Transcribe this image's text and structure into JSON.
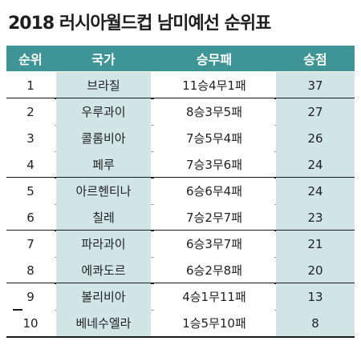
{
  "title": "2018 러시아월드컵 남미예선 순위표",
  "headers": {
    "rank": "순위",
    "team": "국가",
    "record": "승무패",
    "points": "승점"
  },
  "rows": [
    {
      "rank": "1",
      "team": "브라질",
      "record": "11승4무1패",
      "points": "37"
    },
    {
      "rank": "2",
      "team": "우루과이",
      "record": "8승3무5패",
      "points": "27"
    },
    {
      "rank": "3",
      "team": "콜롬비아",
      "record": "7승5무4패",
      "points": "26"
    },
    {
      "rank": "4",
      "team": "페루",
      "record": "7승3무6패",
      "points": "24"
    },
    {
      "rank": "5",
      "team": "아르헨티나",
      "record": "6승6무4패",
      "points": "24"
    },
    {
      "rank": "6",
      "team": "칠레",
      "record": "7승2무7패",
      "points": "23"
    },
    {
      "rank": "7",
      "team": "파라과이",
      "record": "6승3무7패",
      "points": "21"
    },
    {
      "rank": "8",
      "team": "에콰도르",
      "record": "6승2무8패",
      "points": "20"
    },
    {
      "rank": "9",
      "team": "볼리비아",
      "record": "4승1무11패",
      "points": "13"
    },
    {
      "rank": "10",
      "team": "베네수엘라",
      "record": "1승5무10패",
      "points": "8"
    }
  ],
  "colors": {
    "header_bg": "#3f9596",
    "header_text": "#ffffff",
    "cell_tint": "#d1e5e6",
    "separator_strong": "#1a1a1a",
    "separator_light": "#9aa3a4"
  }
}
